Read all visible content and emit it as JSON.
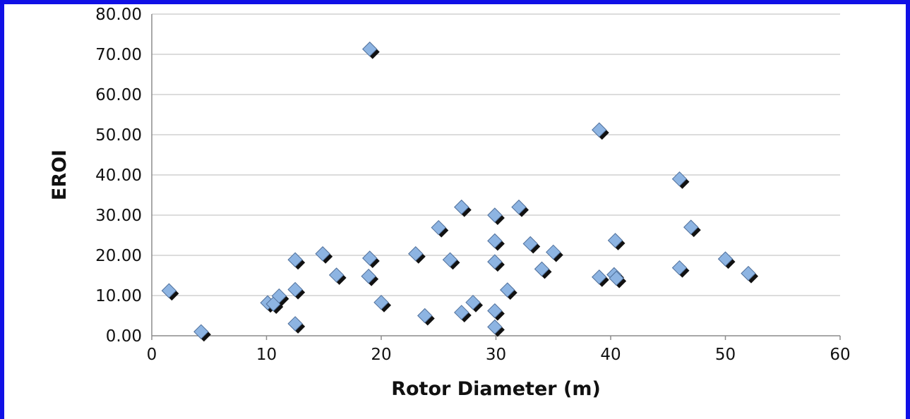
{
  "chart_data": {
    "type": "scatter",
    "title": "",
    "xlabel": "Rotor Diameter (m)",
    "ylabel": "EROI",
    "xlim": [
      0,
      60
    ],
    "ylim": [
      0,
      80
    ],
    "x_ticks": [
      "0",
      "10",
      "20",
      "30",
      "40",
      "50",
      "60"
    ],
    "y_ticks": [
      "0.00",
      "10.00",
      "20.00",
      "30.00",
      "40.00",
      "50.00",
      "60.00",
      "70.00",
      "80.00"
    ],
    "grid": "horizontal",
    "marker": "diamond",
    "marker_color": "#8db4e2",
    "frame_color": "#1010e6",
    "series": [
      {
        "points": [
          [
            1.5,
            11.2
          ],
          [
            4.3,
            1.0
          ],
          [
            10.1,
            8.2
          ],
          [
            10.6,
            7.9
          ],
          [
            11.1,
            9.9
          ],
          [
            12.5,
            11.5
          ],
          [
            12.5,
            3.0
          ],
          [
            12.5,
            18.9
          ],
          [
            14.9,
            20.4
          ],
          [
            16.1,
            15.1
          ],
          [
            19.0,
            71.3
          ],
          [
            19.0,
            19.3
          ],
          [
            18.9,
            14.8
          ],
          [
            20.0,
            8.3
          ],
          [
            23.0,
            20.4
          ],
          [
            23.8,
            5.0
          ],
          [
            25.0,
            26.9
          ],
          [
            26.0,
            18.9
          ],
          [
            27.0,
            32.0
          ],
          [
            27.0,
            5.8
          ],
          [
            28.0,
            8.3
          ],
          [
            29.9,
            30.0
          ],
          [
            29.9,
            23.6
          ],
          [
            29.9,
            18.4
          ],
          [
            29.9,
            6.2
          ],
          [
            29.9,
            2.2
          ],
          [
            31.0,
            11.4
          ],
          [
            32.0,
            32.0
          ],
          [
            33.0,
            22.9
          ],
          [
            34.0,
            16.6
          ],
          [
            35.0,
            20.8
          ],
          [
            39.0,
            51.2
          ],
          [
            39.0,
            14.6
          ],
          [
            40.3,
            15.2
          ],
          [
            40.4,
            23.7
          ],
          [
            40.5,
            14.3
          ],
          [
            46.0,
            39.0
          ],
          [
            46.0,
            16.9
          ],
          [
            47.0,
            27.0
          ],
          [
            50.0,
            19.1
          ],
          [
            52.0,
            15.5
          ]
        ]
      }
    ]
  }
}
